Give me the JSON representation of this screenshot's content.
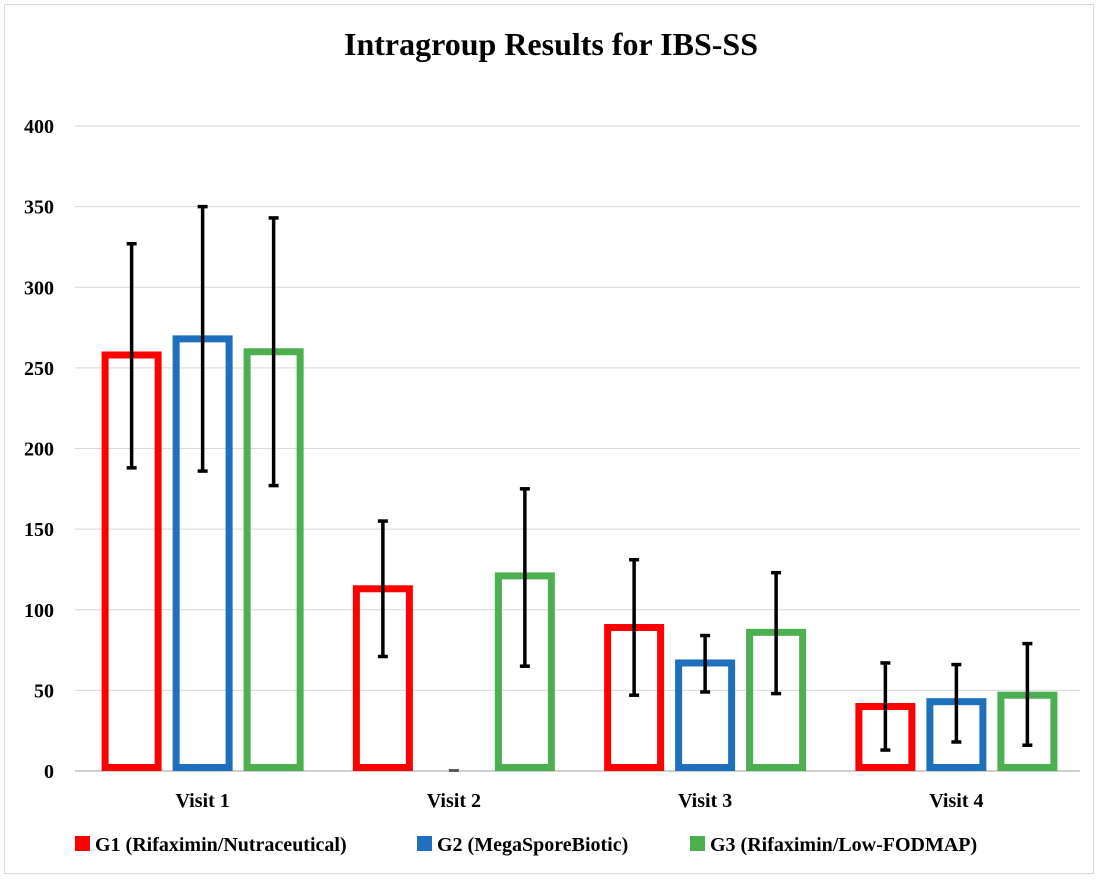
{
  "chart_data": {
    "type": "bar",
    "title": "Intragroup Results for IBS-SS",
    "xlabel": "",
    "ylabel": "",
    "ylim": [
      0,
      400
    ],
    "yticks": [
      0,
      50,
      100,
      150,
      200,
      250,
      300,
      350,
      400
    ],
    "grid": true,
    "legend_position": "bottom",
    "bar_style": "outlined",
    "categories": [
      "Visit 1",
      "Visit 2",
      "Visit 3",
      "Visit 4"
    ],
    "series": [
      {
        "name": "G1 (Rifaximin/Nutraceutical)",
        "color": "#ff0000",
        "values": [
          258,
          113,
          89,
          40
        ],
        "error_low": [
          188,
          71,
          47,
          13
        ],
        "error_high": [
          327,
          155,
          131,
          67
        ]
      },
      {
        "name": "G2 (MegaSporeBiotic)",
        "color": "#1f6fbf",
        "values": [
          268,
          0,
          67,
          43
        ],
        "error_low": [
          186,
          0,
          49,
          18
        ],
        "error_high": [
          350,
          0,
          84,
          66
        ]
      },
      {
        "name": "G3 (Rifaximin/Low-FODMAP)",
        "color": "#4caf50",
        "values": [
          260,
          121,
          86,
          47
        ],
        "error_low": [
          177,
          65,
          48,
          16
        ],
        "error_high": [
          343,
          175,
          123,
          79
        ]
      }
    ]
  }
}
